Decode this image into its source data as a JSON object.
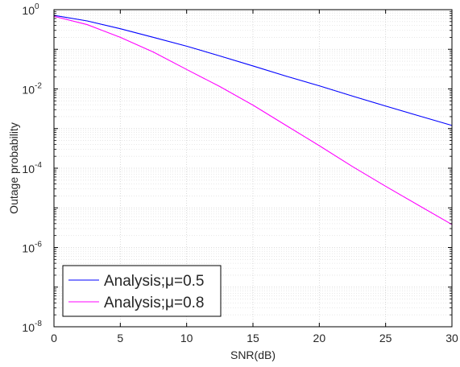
{
  "chart_data": {
    "type": "line",
    "title": "",
    "xlabel": "SNR(dB)",
    "ylabel": "Outage probability",
    "xlim": [
      0,
      30
    ],
    "ylim_log10": [
      -8,
      0
    ],
    "y_scale": "log",
    "grid": true,
    "minor_grid": true,
    "legend_position": "bottom-left",
    "x_ticks": [
      "0",
      "5",
      "10",
      "15",
      "20",
      "25",
      "30"
    ],
    "y_ticks": [
      {
        "base": "10",
        "exp": "0"
      },
      {
        "base": "10",
        "exp": "-2"
      },
      {
        "base": "10",
        "exp": "-4"
      },
      {
        "base": "10",
        "exp": "-6"
      },
      {
        "base": "10",
        "exp": "-8"
      }
    ],
    "series": [
      {
        "name": "Analysis;μ=0.5",
        "color": "#0000ff",
        "x": [
          0,
          2.5,
          5,
          7.5,
          10,
          12.5,
          15,
          17.5,
          20,
          22.5,
          25,
          27.5,
          30
        ],
        "y": [
          0.72,
          0.52,
          0.33,
          0.2,
          0.12,
          0.068,
          0.038,
          0.021,
          0.012,
          0.0066,
          0.0037,
          0.0021,
          0.0012
        ]
      },
      {
        "name": "Analysis;μ=0.8",
        "color": "#ff00ff",
        "x": [
          0,
          2.5,
          5,
          7.5,
          10,
          12.5,
          15,
          17.5,
          20,
          22.5,
          25,
          27.5,
          30
        ],
        "y": [
          0.68,
          0.42,
          0.2,
          0.085,
          0.031,
          0.0115,
          0.0039,
          0.0012,
          0.00037,
          0.00011,
          3.5e-05,
          1.15e-05,
          3.8e-06
        ]
      }
    ]
  }
}
